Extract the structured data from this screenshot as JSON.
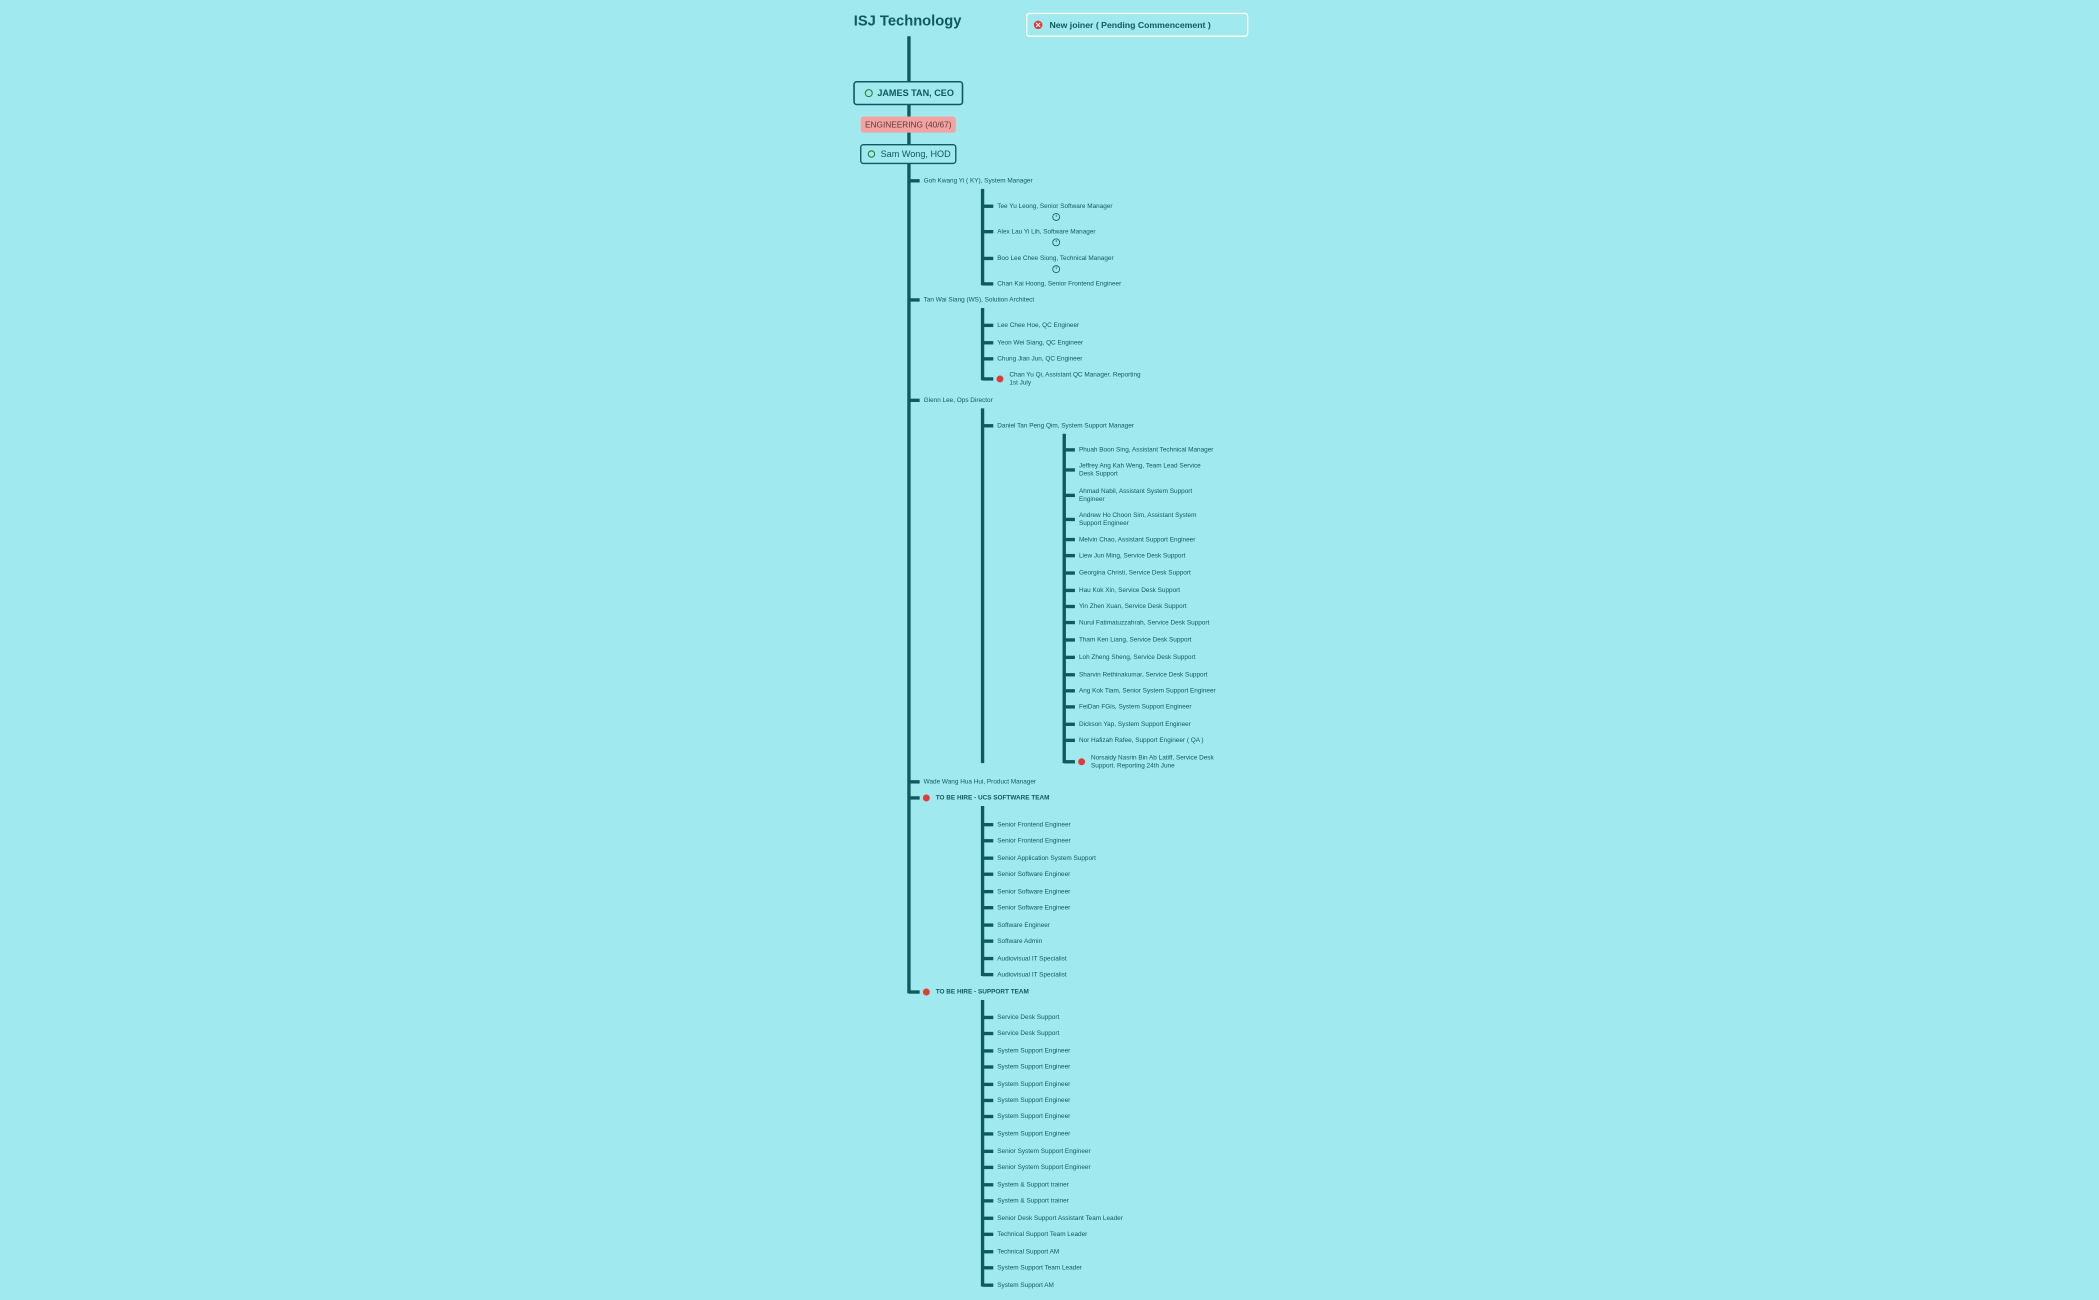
{
  "title": "ISJ Technology",
  "legend": {
    "label": "New joiner ( Pending Commencement )"
  },
  "ceo": {
    "label": "JAMES TAN, CEO"
  },
  "department": {
    "label": "ENGINEERING (40/67)"
  },
  "hod": {
    "label": "Sam Wong, HOD"
  },
  "nodes": [
    {
      "label": "Goh Kwang Yi ( KY), System Manager",
      "children": [
        {
          "label": "Tee Yu Leong, Senior Software Manager",
          "clock": true
        },
        {
          "label": "Alex Lau Yi Lih, Software Manager",
          "clock": true
        },
        {
          "label": "Boo Lee Chee Siong, Technical Manager",
          "clock": true
        },
        {
          "label": "Chan Kai Hoong, Senior Frontend Engineer"
        }
      ]
    },
    {
      "label": "Tan Wai Siang (WS), Solution Architect",
      "children": [
        {
          "label": "Lee Chee Hoe, QC Engineer"
        },
        {
          "label": "Yeon Wei Siang, QC Engineer"
        },
        {
          "label": "Chung Jian Jun, QC Engineer"
        },
        {
          "label": [
            "Chan Yu Qi, Assistant QC Manager. Reporting",
            "1st July"
          ],
          "new_joiner": true
        }
      ]
    },
    {
      "label": "Glenn Lee, Ops Director",
      "children": [
        {
          "label": "Daniel Tan Peng Qim, System Support Manager",
          "children": [
            {
              "label": "Phuah Boon Sing, Assistant Technical Manager"
            },
            {
              "label": [
                "Jeffrey Ang Kah Weng, Team Lead Service",
                "Desk Support"
              ]
            },
            {
              "label": [
                "Ahmad Nabil, Assistant System Support",
                "Engineer"
              ]
            },
            {
              "label": [
                "Andrew Ho Choon Sim, Assistant System",
                "Support Engineer"
              ]
            },
            {
              "label": "Melvin Chao, Assistant Support Engineer"
            },
            {
              "label": "Liew Jun Ming, Service Desk Support"
            },
            {
              "label": "Georgina Christi, Service Desk Support"
            },
            {
              "label": "Hau Kok Xin, Service Desk Support"
            },
            {
              "label": "Yin Zhen Xuan, Service Desk Support"
            },
            {
              "label": "Nurul Fatimatuzzahrah, Service Desk Support"
            },
            {
              "label": "Tham Ken Liang, Service Desk Support"
            },
            {
              "label": "Loh Zheng Sheng, Service Desk Support"
            },
            {
              "label": "Sharvin Rethinakumar, Service Desk Support"
            },
            {
              "label": "Ang Kok Tiam, Senior System Support Engineer"
            },
            {
              "label": "FeiDan FGis, System Support Engineer"
            },
            {
              "label": "Dickson Yap, System Support Engineer"
            },
            {
              "label": "Nor Hafizah Rafee, Support Engineer ( QA )"
            },
            {
              "label": [
                "Norsaidy Nasrin Bin Ab Latiff, Service Desk",
                "Support. Reporting 24th June"
              ],
              "new_joiner": true
            }
          ]
        }
      ]
    },
    {
      "label": "Wade Wang Hua Hui, Product Manager"
    },
    {
      "label": "TO BE HIRE - UCS SOFTWARE TEAM",
      "new_joiner": true,
      "children": [
        {
          "label": "Senior Frontend Engineer"
        },
        {
          "label": "Senior Frontend Engineer"
        },
        {
          "label": "Senior Application System Support"
        },
        {
          "label": "Senior Software Engineer"
        },
        {
          "label": "Senior Software Engineer"
        },
        {
          "label": "Senior Software Engineer"
        },
        {
          "label": "Software Engineer"
        },
        {
          "label": "Software Admin"
        },
        {
          "label": "Audiovisual IT Specialist"
        },
        {
          "label": "Audiovisual IT Specialist"
        }
      ]
    },
    {
      "label": "TO BE HIRE - SUPPORT TEAM",
      "new_joiner": true,
      "children": [
        {
          "label": "Service Desk Support"
        },
        {
          "label": "Service Desk Support"
        },
        {
          "label": "System Support Engineer"
        },
        {
          "label": "System Support Engineer"
        },
        {
          "label": "System Support Engineer"
        },
        {
          "label": "System Support Engineer"
        },
        {
          "label": "System Support Engineer"
        },
        {
          "label": "System Support Engineer"
        },
        {
          "label": "Senior System Support Engineer"
        },
        {
          "label": "Senior System Support Engineer"
        },
        {
          "label": "System & Support trainer"
        },
        {
          "label": "System & Support trainer"
        },
        {
          "label": "Senior Desk Support Assistant Team Leader"
        },
        {
          "label": "Technical Support Team Leader"
        },
        {
          "label": "Technical Support AM"
        },
        {
          "label": "System Support Team Leader"
        },
        {
          "label": "System Support AM"
        }
      ]
    }
  ]
}
